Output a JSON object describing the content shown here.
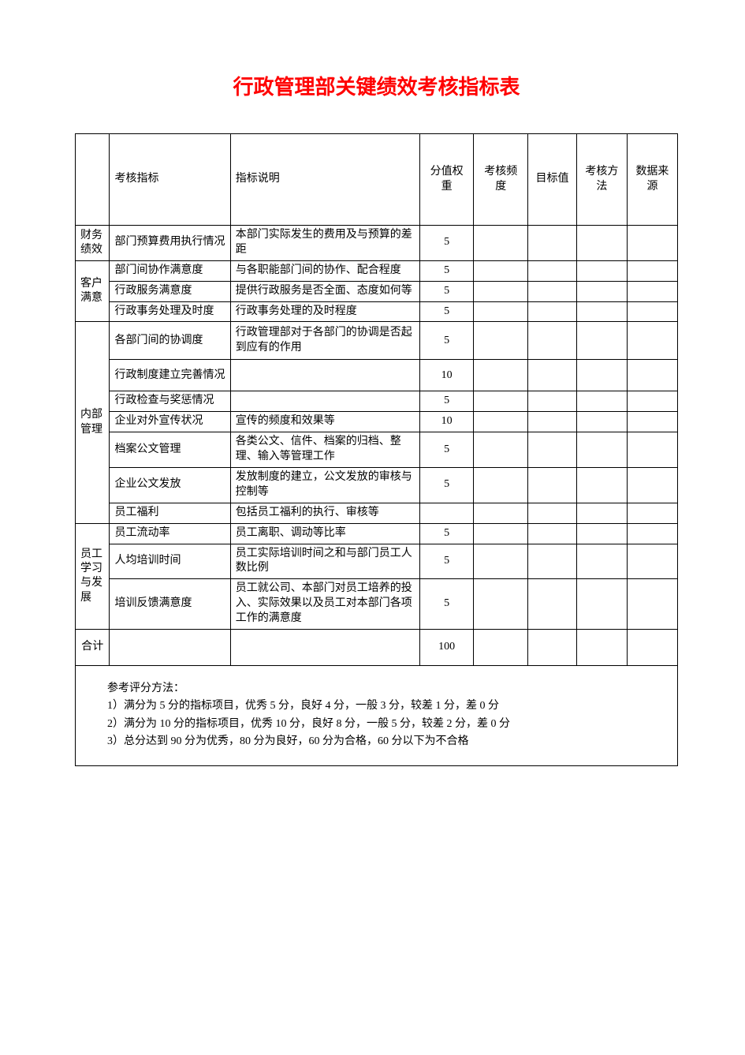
{
  "title": {
    "text": "行政管理部关键绩效考核指标表",
    "color": "#ff0000",
    "fontsize": 26
  },
  "headers": {
    "category": "",
    "indicator": "考核指标",
    "description": "指标说明",
    "weight": "分值权重",
    "frequency": "考核频度",
    "target": "目标值",
    "method": "考核方法",
    "source": "数据来源"
  },
  "categories": [
    {
      "name": "财务绩效",
      "rows": [
        {
          "indicator": "部门预算费用执行情况",
          "description": "本部门实际发生的费用及与预算的差距",
          "weight": "5",
          "frequency": "",
          "target": "",
          "method": "",
          "source": ""
        }
      ]
    },
    {
      "name": "客户满意",
      "rows": [
        {
          "indicator": "部门间协作满意度",
          "description": "与各职能部门间的协作、配合程度",
          "weight": "5",
          "frequency": "",
          "target": "",
          "method": "",
          "source": ""
        },
        {
          "indicator": "行政服务满意度",
          "description": "提供行政服务是否全面、态度如何等",
          "weight": "5",
          "frequency": "",
          "target": "",
          "method": "",
          "source": ""
        },
        {
          "indicator": "行政事务处理及时度",
          "description": "行政事务处理的及时程度",
          "weight": "5",
          "frequency": "",
          "target": "",
          "method": "",
          "source": ""
        }
      ]
    },
    {
      "name": "内部管理",
      "rows": [
        {
          "indicator": "各部门间的协调度",
          "description": "行政管理部对于各部门的协调是否起到应有的作用",
          "weight": "5",
          "frequency": "",
          "target": "",
          "method": "",
          "source": ""
        },
        {
          "indicator": "行政制度建立完善情况",
          "description": "",
          "weight": "10",
          "frequency": "",
          "target": "",
          "method": "",
          "source": ""
        },
        {
          "indicator": "行政检查与奖惩情况",
          "description": "",
          "weight": "5",
          "frequency": "",
          "target": "",
          "method": "",
          "source": ""
        },
        {
          "indicator": "企业对外宣传状况",
          "description": "宣传的频度和效果等",
          "weight": "10",
          "frequency": "",
          "target": "",
          "method": "",
          "source": ""
        },
        {
          "indicator": "档案公文管理",
          "description": "各类公文、信件、档案的归档、整理、输入等管理工作",
          "weight": "5",
          "frequency": "",
          "target": "",
          "method": "",
          "source": ""
        },
        {
          "indicator": "企业公文发放",
          "description": "发放制度的建立，公文发放的审核与控制等",
          "weight": "5",
          "frequency": "",
          "target": "",
          "method": "",
          "source": ""
        },
        {
          "indicator": "员工福利",
          "description": "包括员工福利的执行、审核等",
          "weight": "",
          "frequency": "",
          "target": "",
          "method": "",
          "source": ""
        }
      ]
    },
    {
      "name": "员工学习与发展",
      "rows": [
        {
          "indicator": "员工流动率",
          "description": "员工离职、调动等比率",
          "weight": "5",
          "frequency": "",
          "target": "",
          "method": "",
          "source": ""
        },
        {
          "indicator": "人均培训时间",
          "description": "员工实际培训时间之和与部门员工人数比例",
          "weight": "5",
          "frequency": "",
          "target": "",
          "method": "",
          "source": ""
        },
        {
          "indicator": "培训反馈满意度",
          "description": "员工就公司、本部门对员工培养的投入、实际效果以及员工对本部门各项工作的满意度",
          "weight": "5",
          "frequency": "",
          "target": "",
          "method": "",
          "source": ""
        }
      ]
    }
  ],
  "total": {
    "label": "合计",
    "weight": "100"
  },
  "notes": {
    "heading": "参考评分方法：",
    "lines": [
      "1）满分为 5 分的指标项目，优秀 5 分，良好 4 分，一般 3 分，较差 1 分，差 0 分",
      "2）满分为 10 分的指标项目，优秀 10 分，良好 8 分，一般 5 分，较差 2 分，差 0 分",
      "3）总分达到 90 分为优秀，80 分为良好，60 分为合格，60 分以下为不合格"
    ]
  },
  "style": {
    "border_color": "#000000",
    "background_color": "#ffffff",
    "body_fontsize": 14
  }
}
